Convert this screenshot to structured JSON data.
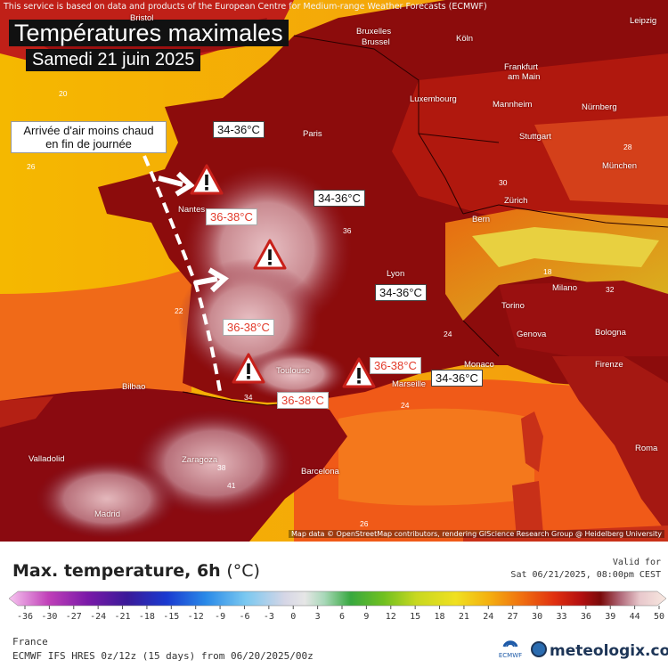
{
  "credits": {
    "top": "This service is based on data and products of the European Centre for Medium-range Weather Forecasts (ECMWF)",
    "bottom": "Map data © OpenStreetMap contributors, rendering GIScience Research Group @ Heidelberg University"
  },
  "title": {
    "main": "Températures maximales",
    "date": "Samedi 21 juin 2025"
  },
  "annotation_note": {
    "line1": "Arrivée d'air moins chaud",
    "line2": "en fin de journée"
  },
  "callouts": [
    {
      "text": "34-36°C",
      "style": "warm"
    },
    {
      "text": "34-36°C",
      "style": "warm"
    },
    {
      "text": "36-38°C",
      "style": "hot"
    },
    {
      "text": "34-36°C",
      "style": "warm"
    },
    {
      "text": "36-38°C",
      "style": "hot"
    },
    {
      "text": "36-38°C",
      "style": "hot"
    },
    {
      "text": "34-36°C",
      "style": "warm"
    },
    {
      "text": "36-38°C",
      "style": "hot"
    }
  ],
  "cities": [
    "Bruxelles",
    "Brussel",
    "Köln",
    "Leipzig",
    "Frankfurt",
    "am Main",
    "Luxembourg",
    "Mannheim",
    "Nürnberg",
    "Paris",
    "Stuttgart",
    "München",
    "Zürich",
    "Bern",
    "Nantes",
    "Lyon",
    "Milano",
    "Torino",
    "Genova",
    "Bologna",
    "Monaco",
    "Firenze",
    "Toulouse",
    "Marseille",
    "Bilbao",
    "Valladolid",
    "Zaragoza",
    "Barcelona",
    "Madrid",
    "Roma",
    "Bristol"
  ],
  "temperature_labels": [
    "20",
    "24",
    "26",
    "22",
    "28",
    "30",
    "34",
    "36",
    "38",
    "41",
    "18",
    "32"
  ],
  "legend": {
    "title": "Max. temperature, 6h",
    "unit": "(°C)",
    "valid_label": "Valid for",
    "valid_time": "Sat 06/21/2025, 08:00pm CEST",
    "ticks": [
      "-36",
      "-30",
      "-27",
      "-24",
      "-21",
      "-18",
      "-15",
      "-12",
      "-9",
      "-6",
      "-3",
      "0",
      "3",
      "6",
      "9",
      "12",
      "15",
      "18",
      "21",
      "24",
      "27",
      "30",
      "33",
      "36",
      "39",
      "44",
      "50"
    ],
    "region": "France",
    "model": "ECMWF IFS HRES 0z/12z (15 days) from 06/20/2025/00z",
    "ecmwf_logo_text": "ECMWF",
    "brand": "meteologix.com"
  }
}
